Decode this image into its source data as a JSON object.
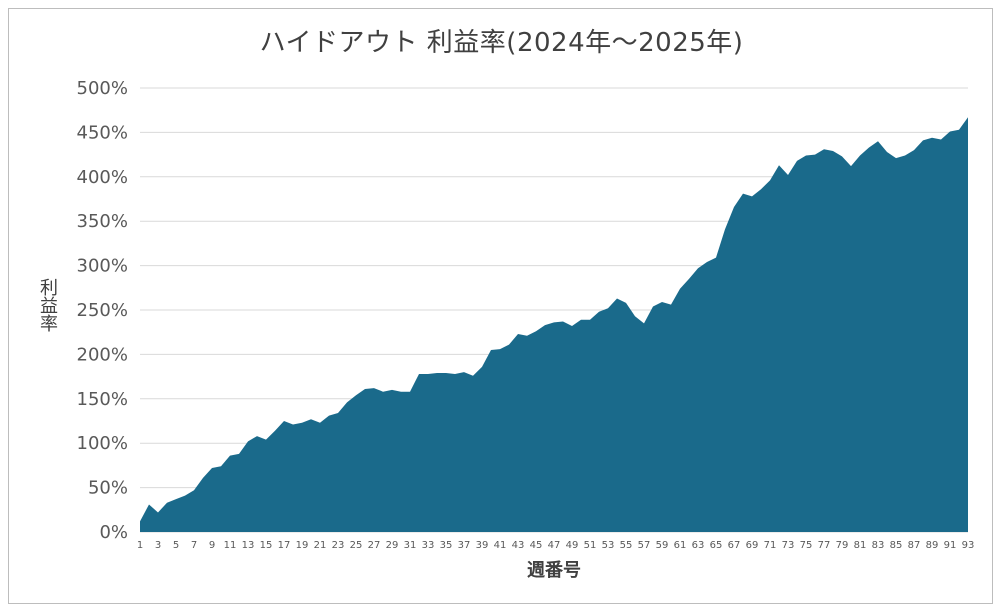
{
  "chart_data": {
    "type": "area",
    "title": "ハイドアウト 利益率(2024年～2025年)",
    "xlabel": "週番号",
    "ylabel": "利益率",
    "y_tick_labels": [
      "0%",
      "50%",
      "100%",
      "150%",
      "200%",
      "250%",
      "300%",
      "350%",
      "400%",
      "450%",
      "500%"
    ],
    "ylim": [
      0,
      500
    ],
    "y_unit": "%",
    "grid": "horizontal",
    "legend": "none",
    "color": "#1a6a8b",
    "x": [
      1,
      2,
      3,
      4,
      5,
      6,
      7,
      8,
      9,
      10,
      11,
      12,
      13,
      14,
      15,
      16,
      17,
      18,
      19,
      20,
      21,
      22,
      23,
      24,
      25,
      26,
      27,
      28,
      29,
      30,
      31,
      32,
      33,
      34,
      35,
      36,
      37,
      38,
      39,
      40,
      41,
      42,
      43,
      44,
      45,
      46,
      47,
      48,
      49,
      50,
      51,
      52,
      53,
      54,
      55,
      56,
      57,
      58,
      59,
      60,
      61,
      62,
      63,
      64,
      65,
      66,
      67,
      68,
      69,
      70,
      71,
      72,
      73,
      74,
      75,
      76,
      77,
      78,
      79,
      80,
      81,
      82,
      83,
      84,
      85,
      86,
      87,
      88,
      89,
      90,
      91,
      92,
      93
    ],
    "x_tick_labels": [
      "1",
      "3",
      "5",
      "7",
      "9",
      "11",
      "13",
      "15",
      "17",
      "19",
      "21",
      "23",
      "25",
      "27",
      "29",
      "31",
      "33",
      "35",
      "37",
      "39",
      "41",
      "43",
      "45",
      "47",
      "49",
      "51",
      "53",
      "55",
      "57",
      "59",
      "61",
      "63",
      "65",
      "67",
      "69",
      "71",
      "73",
      "75",
      "77",
      "79",
      "81",
      "83",
      "85",
      "87",
      "89",
      "91",
      "93"
    ],
    "values": [
      12,
      31,
      22,
      33,
      37,
      41,
      47,
      61,
      72,
      74,
      86,
      88,
      102,
      108,
      104,
      114,
      125,
      121,
      123,
      127,
      123,
      131,
      134,
      146,
      154,
      161,
      162,
      158,
      160,
      158,
      158,
      178,
      178,
      179,
      179,
      178,
      180,
      176,
      186,
      205,
      206,
      211,
      223,
      221,
      226,
      233,
      236,
      237,
      232,
      239,
      239,
      248,
      252,
      263,
      258,
      243,
      235,
      254,
      259,
      256,
      274,
      285,
      297,
      304,
      309,
      341,
      366,
      381,
      378,
      386,
      396,
      413,
      402,
      418,
      424,
      425,
      431,
      429,
      423,
      412,
      424,
      433,
      440,
      428,
      421,
      424,
      430,
      441,
      444,
      442,
      451,
      453,
      467
    ]
  }
}
